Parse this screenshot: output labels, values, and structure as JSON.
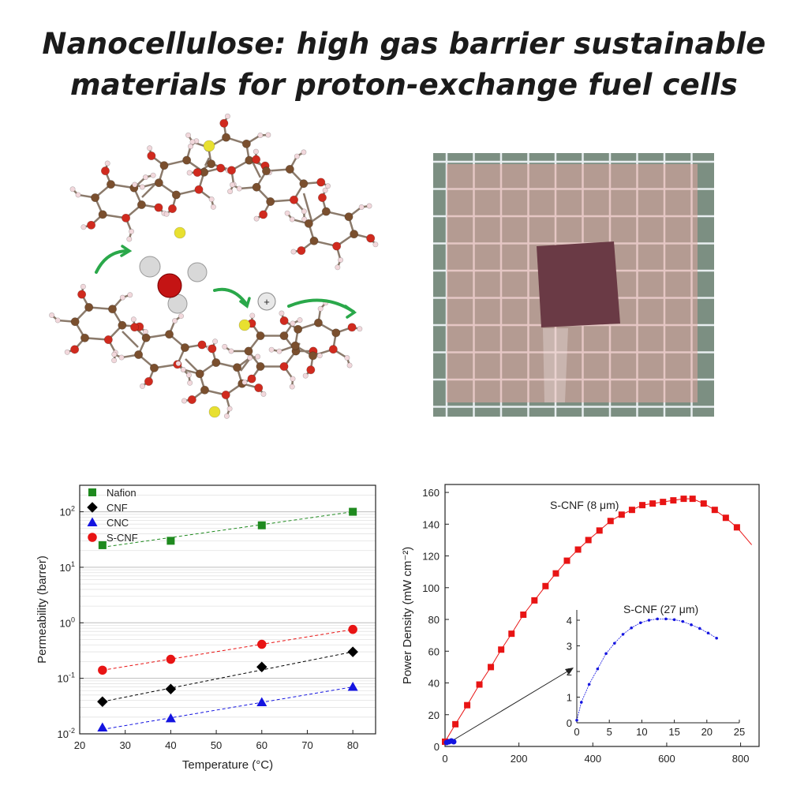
{
  "title": {
    "line1": "Nanocellulose: high gas barrier sustainable",
    "line2": "materials for proton-exchange fuel cells"
  },
  "molecule_figure": {
    "proton_symbol": "+"
  },
  "photo": {
    "background": "#7c8f82",
    "grid_color": "#e8eef0",
    "film_color": "#e2a5a0",
    "sample_color": "#6a3a45"
  },
  "chart_data": [
    {
      "type": "scatter",
      "xlabel": "Temperature (°C)",
      "ylabel": "Permeability (barrer)",
      "xlim": [
        20,
        85
      ],
      "yscale": "log",
      "ylim": [
        0.01,
        300
      ],
      "x_ticks": [
        20,
        30,
        40,
        50,
        60,
        70,
        80
      ],
      "y_ticks": [
        {
          "value": 0.01,
          "base": "10",
          "exp": "-2"
        },
        {
          "value": 0.1,
          "base": "10",
          "exp": "-1"
        },
        {
          "value": 1,
          "base": "10",
          "exp": "0"
        },
        {
          "value": 10,
          "base": "10",
          "exp": "1"
        },
        {
          "value": 100,
          "base": "10",
          "exp": "2"
        }
      ],
      "legend_position": "top-left",
      "grid": true,
      "series": [
        {
          "name": "Nafion",
          "marker": "square",
          "color": "#1f8a1f",
          "x": [
            25,
            40,
            60,
            80
          ],
          "y": [
            25,
            30,
            57,
            100
          ],
          "fit": [
            [
              25,
              23
            ],
            [
              80,
              100
            ]
          ]
        },
        {
          "name": "CNF",
          "marker": "diamond",
          "color": "#000000",
          "x": [
            25,
            40,
            60,
            80
          ],
          "y": [
            0.038,
            0.064,
            0.16,
            0.3
          ],
          "fit": [
            [
              25,
              0.038
            ],
            [
              80,
              0.3
            ]
          ]
        },
        {
          "name": "CNC",
          "marker": "triangle",
          "color": "#1414e0",
          "x": [
            25,
            40,
            60,
            80
          ],
          "y": [
            0.013,
            0.019,
            0.037,
            0.07
          ],
          "fit": [
            [
              25,
              0.012
            ],
            [
              80,
              0.07
            ]
          ]
        },
        {
          "name": "S-CNF",
          "marker": "circle",
          "color": "#e81414",
          "x": [
            25,
            40,
            60,
            80
          ],
          "y": [
            0.14,
            0.22,
            0.41,
            0.76
          ],
          "fit": [
            [
              25,
              0.14
            ],
            [
              80,
              0.76
            ]
          ]
        }
      ]
    },
    {
      "type": "line",
      "xlabel": "",
      "ylabel": "Power Density (mW cm⁻²)",
      "xlim": [
        0,
        850
      ],
      "ylim": [
        0,
        165
      ],
      "x_ticks": [
        0,
        200,
        400,
        600,
        800
      ],
      "y_ticks": [
        0,
        20,
        40,
        60,
        80,
        100,
        120,
        140,
        160
      ],
      "series": [
        {
          "name": "S-CNF (8 μm)",
          "color": "#e81414",
          "marker": "square",
          "x": [
            0,
            28,
            60,
            93,
            124,
            152,
            180,
            212,
            242,
            272,
            300,
            330,
            360,
            388,
            418,
            448,
            478,
            506,
            534,
            562,
            590,
            618,
            646,
            670,
            700,
            730,
            760,
            790
          ],
          "y": [
            3,
            14,
            26,
            39,
            50,
            61,
            71,
            83,
            92,
            101,
            109,
            117,
            124,
            130,
            136,
            142,
            146,
            149,
            152,
            153,
            154,
            155,
            156,
            156,
            153,
            149,
            144,
            138
          ],
          "curve_end": [
            830,
            127
          ]
        }
      ],
      "inset": {
        "type": "line",
        "title": "S-CNF (27 μm)",
        "xlim": [
          0,
          25
        ],
        "ylim": [
          0,
          4.4
        ],
        "x_ticks": [
          0,
          5,
          10,
          15,
          20,
          25
        ],
        "y_ticks": [
          0,
          1,
          2,
          3,
          4
        ],
        "series": [
          {
            "name": "S-CNF (27 μm)",
            "color": "#1414e0",
            "marker": "dot",
            "x": [
              0,
              0.7,
              1.9,
              3.2,
              4.5,
              5.8,
              7.1,
              8.4,
              9.8,
              11.1,
              12.4,
              13.7,
              15.0,
              16.3,
              17.6,
              18.9,
              20.2,
              21.5
            ],
            "y": [
              0.1,
              0.8,
              1.5,
              2.1,
              2.7,
              3.1,
              3.45,
              3.7,
              3.9,
              4.0,
              4.05,
              4.05,
              4.02,
              3.95,
              3.82,
              3.68,
              3.5,
              3.3
            ]
          }
        ]
      }
    }
  ]
}
